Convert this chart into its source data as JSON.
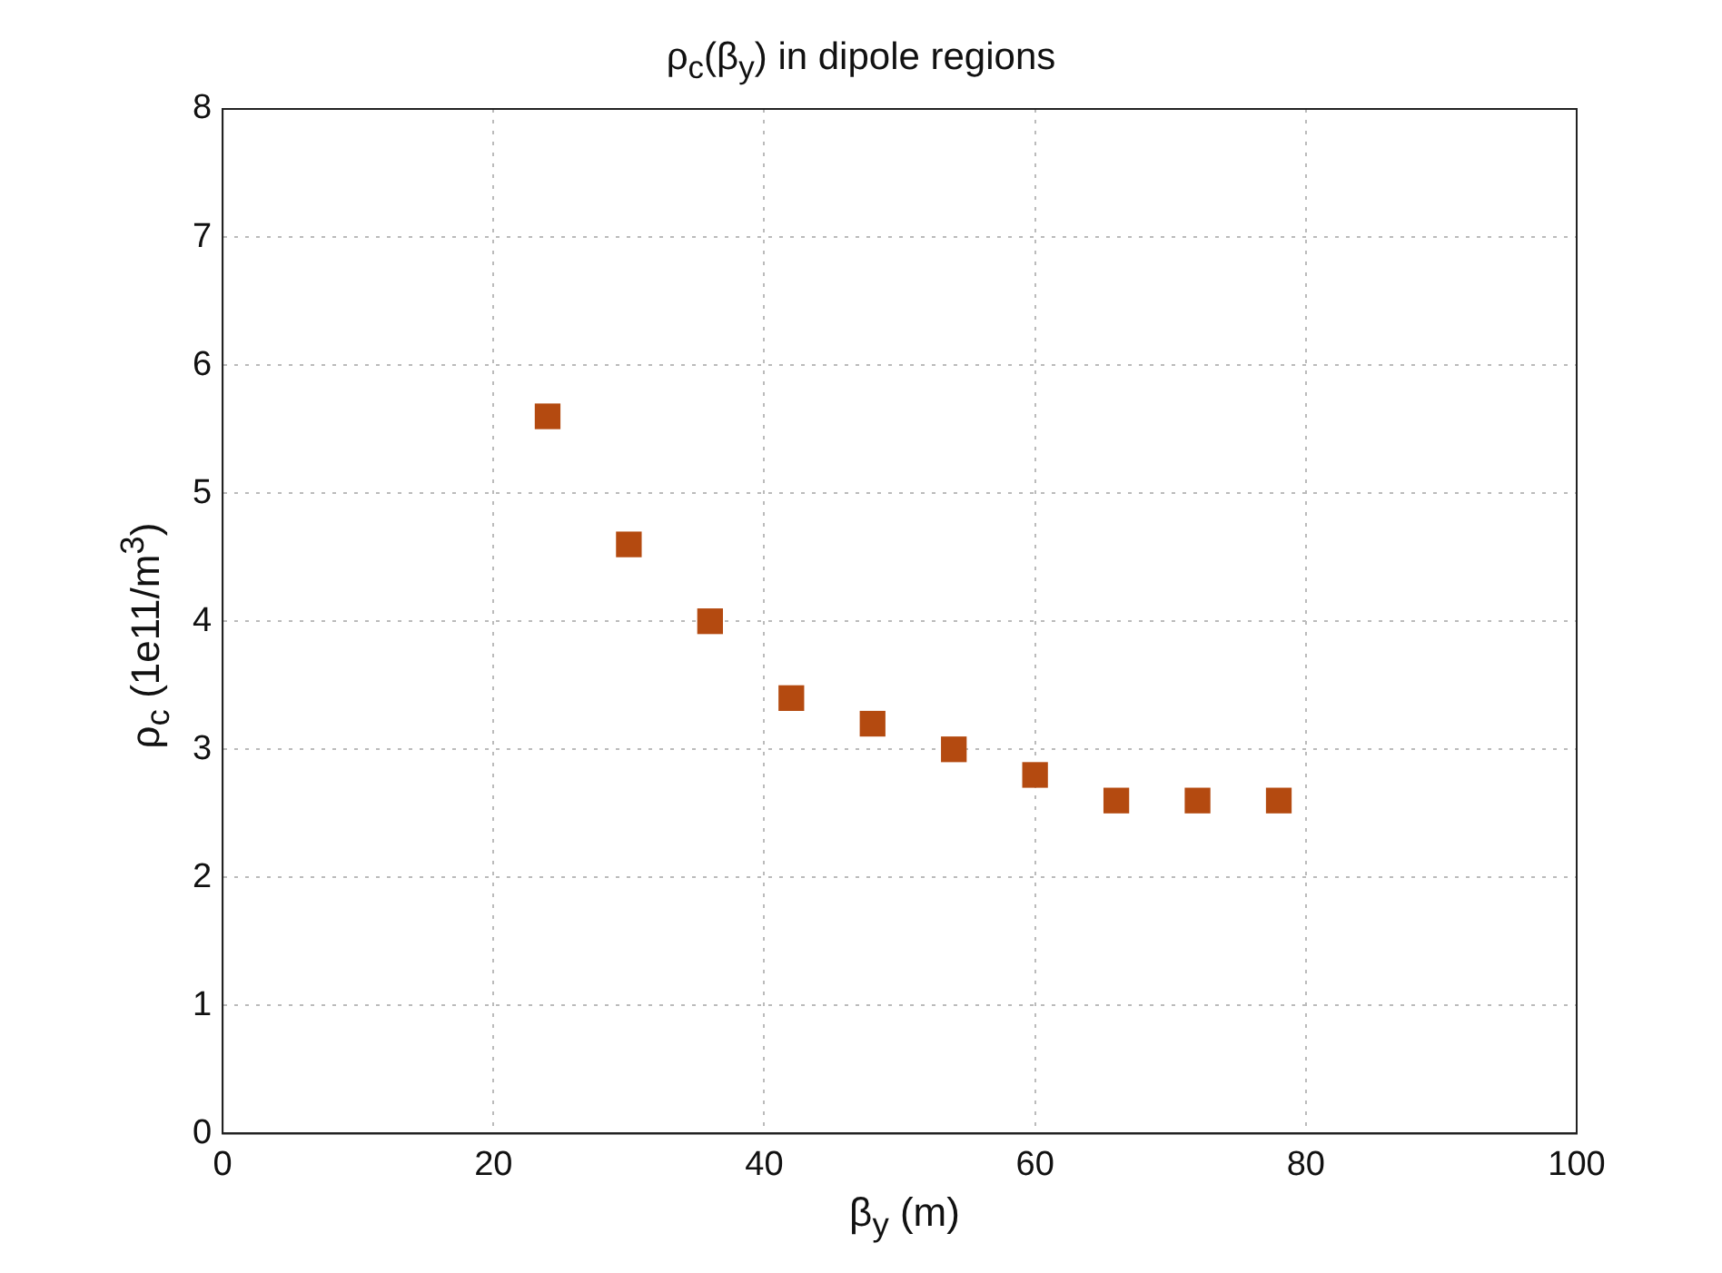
{
  "chart_data": {
    "type": "scatter",
    "title": "ρ$_{c}$(β$_{y}$) in dipole regions",
    "xlabel": "β$_{y}$ (m)",
    "ylabel": "ρ$_{c}$ (1e11/m$^{3}$)",
    "x": [
      24,
      30,
      36,
      42,
      48,
      54,
      60,
      66,
      72,
      78
    ],
    "series": [
      {
        "color": "#b44a10",
        "values": [
          5.6,
          4.6,
          4.0,
          3.4,
          3.2,
          3.0,
          2.8,
          2.6,
          2.6,
          2.6
        ]
      }
    ],
    "xlim": [
      0,
      100
    ],
    "xticks": [
      0,
      20,
      40,
      60,
      80,
      100
    ],
    "ylim": [
      0,
      8
    ],
    "yticks": [
      0,
      1,
      2,
      3,
      4,
      5,
      6,
      7,
      8
    ],
    "grid": true,
    "legend": false,
    "marker": "square"
  }
}
